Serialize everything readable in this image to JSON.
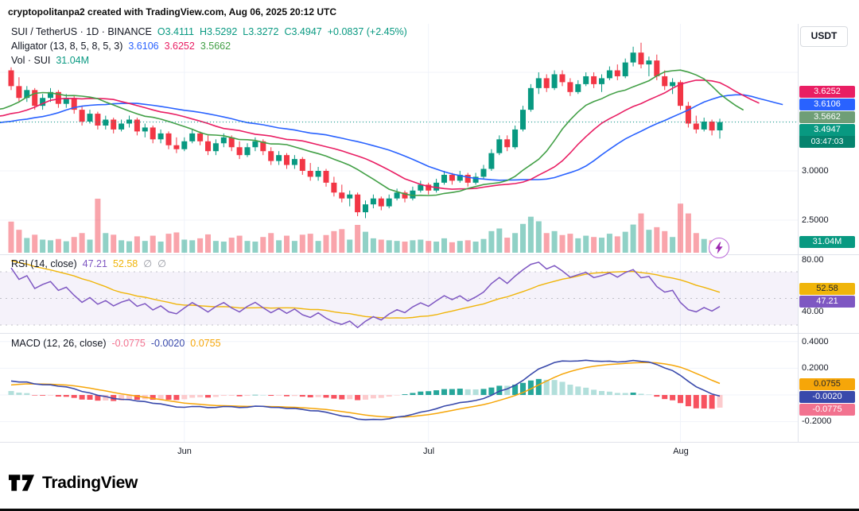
{
  "header": {
    "text": "cryptopolitanpa2 created with TradingView.com, Aug 06, 2025 20:12 UTC"
  },
  "toolbar": {
    "currency": "USDT"
  },
  "price_pane": {
    "legend": {
      "title": "SUI / TetherUS · 1D · BINANCE",
      "open": "O3.4111",
      "high": "H3.5292",
      "low": "L3.3272",
      "close": "C3.4947",
      "change": "+0.0837 (+2.45%)"
    },
    "alligator_legend": {
      "title": "Alligator (13, 8, 5, 8, 5, 3)",
      "jaw": "3.6106",
      "teeth": "3.6252",
      "lips": "3.5662"
    },
    "volume_legend": {
      "title": "Vol · SUI",
      "value": "31.04M"
    },
    "axis": {
      "p1": "3.0000",
      "p2": "2.5000"
    },
    "badges": {
      "teeth": "3.6252",
      "jaw": "3.6106",
      "lips": "3.5662",
      "last": "3.4947",
      "countdown": "03:47:03",
      "volume": "31.04M"
    }
  },
  "rsi_pane": {
    "legend": {
      "title": "RSI (14, close)",
      "rsi": "47.21",
      "ma": "52.58",
      "d1": "∅",
      "d2": "∅"
    },
    "axis": {
      "a1": "80.00",
      "a2": "40.00"
    },
    "badges": {
      "ma": "52.58",
      "rsi": "47.21"
    }
  },
  "macd_pane": {
    "legend": {
      "title": "MACD (12, 26, close)",
      "hist": "-0.0775",
      "macd": "-0.0020",
      "signal": "0.0755"
    },
    "axis": {
      "a1": "0.4000",
      "a2": "0.2000",
      "a3": "-0.2000"
    },
    "badges": {
      "signal": "0.0755",
      "macd": "-0.0020",
      "hist": "-0.0775"
    }
  },
  "time_axis": {
    "m1": "Jun",
    "m2": "Jul",
    "m3": "Aug"
  },
  "footer": {
    "brand": "TradingView"
  },
  "colors": {
    "up": "#089981",
    "down": "#f23645",
    "vol_up": "rgba(8,153,129,0.45)",
    "vol_down": "rgba(242,54,69,0.45)",
    "jaw": "#2962ff",
    "teeth": "#e91e63",
    "lips": "#43a047",
    "lips_badge": "#6f9e77",
    "rsi": "#7e57c2",
    "rsi_ma": "#f0b50a",
    "rsi_band": "rgba(126,87,194,0.08)",
    "macd": "#3949ab",
    "macd_signal": "#f6a609",
    "hist_up_grow": "#26a69a",
    "hist_up_fall": "#b2dfdb",
    "hist_dn_fall": "#f7525f",
    "hist_dn_grow": "#fccbcd",
    "hist_badge": "#f2728f",
    "grid": "#f0f3fa",
    "levels": "#9598a1"
  },
  "chart_data": {
    "type": "candlestick",
    "title": "SUI / TetherUS · 1D · BINANCE",
    "last_bar": {
      "open": 3.4111,
      "high": 3.5292,
      "low": 3.3272,
      "close": 3.4947,
      "change": 0.0837,
      "change_pct": 2.45
    },
    "x_tick_labels": [
      "Jun",
      "Jul",
      "Aug"
    ],
    "x_tick_indices": [
      22,
      53,
      85
    ],
    "price_axis_ticks": [
      3.0,
      2.5
    ],
    "price_gridlines": [
      4.0,
      3.5,
      3.0,
      2.5
    ],
    "candles": [
      [
        4.02,
        4.05,
        3.82,
        3.86
      ],
      [
        3.86,
        3.95,
        3.7,
        3.74
      ],
      [
        3.74,
        3.86,
        3.7,
        3.82
      ],
      [
        3.82,
        3.84,
        3.62,
        3.66
      ],
      [
        3.66,
        3.78,
        3.62,
        3.74
      ],
      [
        3.74,
        3.84,
        3.7,
        3.8
      ],
      [
        3.8,
        3.82,
        3.64,
        3.68
      ],
      [
        3.68,
        3.78,
        3.64,
        3.74
      ],
      [
        3.74,
        3.76,
        3.58,
        3.62
      ],
      [
        3.62,
        3.66,
        3.46,
        3.5
      ],
      [
        3.5,
        3.62,
        3.48,
        3.58
      ],
      [
        3.58,
        3.6,
        3.42,
        3.46
      ],
      [
        3.46,
        3.56,
        3.42,
        3.52
      ],
      [
        3.52,
        3.54,
        3.38,
        3.42
      ],
      [
        3.42,
        3.52,
        3.4,
        3.48
      ],
      [
        3.48,
        3.56,
        3.44,
        3.52
      ],
      [
        3.52,
        3.54,
        3.36,
        3.4
      ],
      [
        3.4,
        3.48,
        3.34,
        3.44
      ],
      [
        3.44,
        3.46,
        3.28,
        3.32
      ],
      [
        3.32,
        3.42,
        3.28,
        3.38
      ],
      [
        3.38,
        3.4,
        3.22,
        3.26
      ],
      [
        3.26,
        3.34,
        3.18,
        3.22
      ],
      [
        3.22,
        3.34,
        3.2,
        3.3
      ],
      [
        3.3,
        3.42,
        3.28,
        3.38
      ],
      [
        3.38,
        3.4,
        3.26,
        3.3
      ],
      [
        3.3,
        3.36,
        3.16,
        3.2
      ],
      [
        3.2,
        3.32,
        3.16,
        3.28
      ],
      [
        3.28,
        3.38,
        3.24,
        3.34
      ],
      [
        3.34,
        3.36,
        3.2,
        3.24
      ],
      [
        3.24,
        3.3,
        3.12,
        3.16
      ],
      [
        3.16,
        3.28,
        3.14,
        3.24
      ],
      [
        3.24,
        3.34,
        3.2,
        3.3
      ],
      [
        3.3,
        3.32,
        3.16,
        3.2
      ],
      [
        3.2,
        3.24,
        3.06,
        3.1
      ],
      [
        3.1,
        3.2,
        3.06,
        3.16
      ],
      [
        3.16,
        3.18,
        3.02,
        3.06
      ],
      [
        3.06,
        3.16,
        3.02,
        3.12
      ],
      [
        3.12,
        3.14,
        2.96,
        3.0
      ],
      [
        3.0,
        3.08,
        2.9,
        2.94
      ],
      [
        2.94,
        3.04,
        2.9,
        3.0
      ],
      [
        3.0,
        3.02,
        2.84,
        2.88
      ],
      [
        2.88,
        2.94,
        2.74,
        2.78
      ],
      [
        2.78,
        2.86,
        2.68,
        2.72
      ],
      [
        2.72,
        2.8,
        2.64,
        2.76
      ],
      [
        2.76,
        2.78,
        2.54,
        2.58
      ],
      [
        2.58,
        2.7,
        2.52,
        2.66
      ],
      [
        2.66,
        2.76,
        2.62,
        2.72
      ],
      [
        2.72,
        2.74,
        2.6,
        2.64
      ],
      [
        2.64,
        2.76,
        2.62,
        2.72
      ],
      [
        2.72,
        2.82,
        2.7,
        2.78
      ],
      [
        2.78,
        2.8,
        2.68,
        2.72
      ],
      [
        2.72,
        2.84,
        2.7,
        2.8
      ],
      [
        2.8,
        2.9,
        2.78,
        2.86
      ],
      [
        2.86,
        2.88,
        2.76,
        2.8
      ],
      [
        2.8,
        2.92,
        2.78,
        2.88
      ],
      [
        2.88,
        3.0,
        2.86,
        2.96
      ],
      [
        2.96,
        2.98,
        2.86,
        2.9
      ],
      [
        2.9,
        3.0,
        2.88,
        2.96
      ],
      [
        2.96,
        2.98,
        2.84,
        2.88
      ],
      [
        2.88,
        2.98,
        2.86,
        2.94
      ],
      [
        2.94,
        3.06,
        2.92,
        3.02
      ],
      [
        3.02,
        3.22,
        3.0,
        3.18
      ],
      [
        3.18,
        3.36,
        3.16,
        3.32
      ],
      [
        3.32,
        3.36,
        3.2,
        3.24
      ],
      [
        3.24,
        3.46,
        3.22,
        3.42
      ],
      [
        3.42,
        3.66,
        3.4,
        3.62
      ],
      [
        3.62,
        3.88,
        3.6,
        3.84
      ],
      [
        3.84,
        4.0,
        3.78,
        3.94
      ],
      [
        3.94,
        3.98,
        3.8,
        3.84
      ],
      [
        3.84,
        4.02,
        3.82,
        3.98
      ],
      [
        3.98,
        4.02,
        3.86,
        3.9
      ],
      [
        3.9,
        3.94,
        3.76,
        3.8
      ],
      [
        3.8,
        3.92,
        3.78,
        3.88
      ],
      [
        3.88,
        4.0,
        3.86,
        3.96
      ],
      [
        3.96,
        4.0,
        3.84,
        3.88
      ],
      [
        3.88,
        3.98,
        3.8,
        3.94
      ],
      [
        3.94,
        4.06,
        3.92,
        4.02
      ],
      [
        4.02,
        4.08,
        3.92,
        3.96
      ],
      [
        3.96,
        4.14,
        3.94,
        4.1
      ],
      [
        4.1,
        4.26,
        4.06,
        4.2
      ],
      [
        4.2,
        4.3,
        4.04,
        4.08
      ],
      [
        4.08,
        4.16,
        3.96,
        4.12
      ],
      [
        4.12,
        4.18,
        3.92,
        3.96
      ],
      [
        3.96,
        4.02,
        3.82,
        3.86
      ],
      [
        3.86,
        3.94,
        3.78,
        3.9
      ],
      [
        3.9,
        3.92,
        3.62,
        3.66
      ],
      [
        3.66,
        3.7,
        3.44,
        3.48
      ],
      [
        3.48,
        3.56,
        3.38,
        3.42
      ],
      [
        3.42,
        3.54,
        3.4,
        3.5
      ],
      [
        3.5,
        3.52,
        3.36,
        3.41
      ],
      [
        3.4111,
        3.5292,
        3.3272,
        3.4947
      ]
    ],
    "volume_m": [
      95,
      70,
      45,
      55,
      40,
      38,
      42,
      35,
      48,
      60,
      40,
      165,
      60,
      55,
      38,
      35,
      50,
      36,
      52,
      34,
      58,
      62,
      40,
      38,
      44,
      56,
      36,
      34,
      46,
      52,
      36,
      34,
      48,
      60,
      38,
      52,
      36,
      55,
      58,
      36,
      54,
      66,
      72,
      40,
      85,
      64,
      44,
      40,
      38,
      36,
      34,
      38,
      40,
      36,
      34,
      44,
      32,
      36,
      38,
      34,
      42,
      66,
      74,
      46,
      60,
      88,
      110,
      96,
      60,
      66,
      54,
      58,
      44,
      52,
      48,
      46,
      58,
      50,
      64,
      86,
      120,
      70,
      78,
      66,
      48,
      150,
      120,
      60,
      42,
      38,
      31.04
    ],
    "volume_last_label": "31.04M",
    "alligator": {
      "params": [
        13,
        8,
        5,
        8,
        5,
        3
      ],
      "jaw": 3.6106,
      "teeth": 3.6252,
      "lips": 3.5662
    },
    "rsi": {
      "period": 14,
      "value": 47.21,
      "ma_value": 52.58,
      "band": [
        70,
        30
      ],
      "axis_ticks": [
        80,
        40
      ]
    },
    "macd": {
      "fast": 12,
      "slow": 26,
      "signal_period": 9,
      "hist_value": -0.0775,
      "macd_value": -0.002,
      "signal_value": 0.0755,
      "axis_ticks": [
        0.4,
        0.2,
        -0.2
      ]
    }
  }
}
